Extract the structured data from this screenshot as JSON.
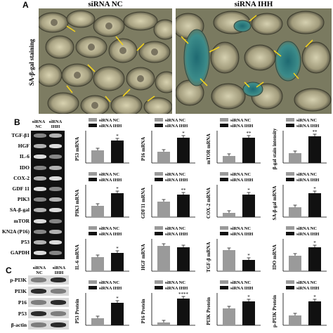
{
  "panelA": {
    "letter": "A",
    "side_label": "SA-β-gal staining",
    "left_title": "siRNA NC",
    "right_title": "siRNA IHH"
  },
  "panelB": {
    "letter": "B",
    "col_heads": [
      "siRNA NC",
      "siRNA IHH"
    ],
    "rows": [
      "TGF-β1",
      "HGF",
      "IL-6",
      "IDO",
      "COX-2",
      "GDF 11",
      "PIK3",
      "SA-β-gal",
      "mTOR",
      "KN2A (P16)",
      "P53",
      "GAPDH"
    ]
  },
  "panelC": {
    "letter": "C",
    "col_heads": [
      "siRNA NC",
      "siRNA IHH"
    ],
    "rows": [
      "p-PI3K",
      "PI3K",
      "P16",
      "P53",
      "β-actin"
    ]
  },
  "legend": {
    "nc": "siRNA NC",
    "ihh": "siRNA IHH"
  },
  "colors": {
    "nc": "#9a9a9a",
    "ihh": "#111111"
  },
  "chart_data": [
    {
      "type": "bar",
      "ylabel": "P53 mRNA",
      "categories": [
        "siRNA NC",
        "siRNA IHH"
      ],
      "values": [
        0.45,
        0.8
      ],
      "sig": "*"
    },
    {
      "type": "bar",
      "ylabel": "P16 mRNA",
      "categories": [
        "siRNA NC",
        "siRNA IHH"
      ],
      "values": [
        0.4,
        0.9
      ],
      "sig": "*"
    },
    {
      "type": "bar",
      "ylabel": "mTOR mRNA",
      "categories": [
        "siRNA NC",
        "siRNA IHH"
      ],
      "values": [
        0.25,
        0.9
      ],
      "sig": "**"
    },
    {
      "type": "bar",
      "ylabel": "β-gal stain intensity",
      "categories": [
        "siRNA NC",
        "siRNA IHH"
      ],
      "values": [
        0.35,
        0.95
      ],
      "sig": "**"
    },
    {
      "type": "bar",
      "ylabel": "PIK3 mRNA",
      "categories": [
        "siRNA NC",
        "siRNA IHH"
      ],
      "values": [
        0.4,
        0.85
      ],
      "sig": "*"
    },
    {
      "type": "bar",
      "ylabel": "GDF11 mRNA",
      "categories": [
        "siRNA NC",
        "siRNA IHH"
      ],
      "values": [
        0.55,
        0.8
      ],
      "sig": "**"
    },
    {
      "type": "bar",
      "ylabel": "COX-2 mRNA",
      "categories": [
        "siRNA NC",
        "siRNA IHH"
      ],
      "values": [
        0.15,
        0.8
      ],
      "sig": "*"
    },
    {
      "type": "bar",
      "ylabel": "SA-β-gal  mRNA",
      "categories": [
        "siRNA NC",
        "siRNA IHH"
      ],
      "values": [
        0.35,
        0.85
      ],
      "sig": "*"
    },
    {
      "type": "bar",
      "ylabel": "IL-6 mRNA",
      "categories": [
        "siRNA NC",
        "siRNA IHH"
      ],
      "values": [
        0.5,
        0.65
      ],
      "sig": "*"
    },
    {
      "type": "bar",
      "ylabel": "HGF mRNA",
      "categories": [
        "siRNA NC",
        "siRNA IHH"
      ],
      "values": [
        0.9,
        0.85
      ],
      "sig": ""
    },
    {
      "type": "bar",
      "ylabel": "TGF-β mRNA",
      "categories": [
        "siRNA NC",
        "siRNA IHH"
      ],
      "values": [
        0.75,
        0.4
      ],
      "sig": "*"
    },
    {
      "type": "bar",
      "ylabel": "IDO mRNA",
      "categories": [
        "siRNA NC",
        "siRNA IHH"
      ],
      "values": [
        0.55,
        0.85
      ],
      "sig": "*"
    },
    {
      "type": "bar",
      "ylabel": "P53 Protein",
      "categories": [
        "siRNA NC",
        "siRNA IHH"
      ],
      "values": [
        0.25,
        0.8
      ],
      "sig": "*"
    },
    {
      "type": "bar",
      "ylabel": "P16 Protein",
      "categories": [
        "siRNA NC",
        "siRNA IHH"
      ],
      "values": [
        0.1,
        0.95
      ],
      "sig": "****"
    },
    {
      "type": "bar",
      "ylabel": "PI3K Protein",
      "categories": [
        "siRNA NC",
        "siRNA IHH"
      ],
      "values": [
        0.6,
        0.85
      ],
      "sig": "*"
    },
    {
      "type": "bar",
      "ylabel": "p-PI3K Protein",
      "categories": [
        "siRNA NC",
        "siRNA IHH"
      ],
      "values": [
        0.35,
        0.85
      ],
      "sig": "*"
    }
  ]
}
